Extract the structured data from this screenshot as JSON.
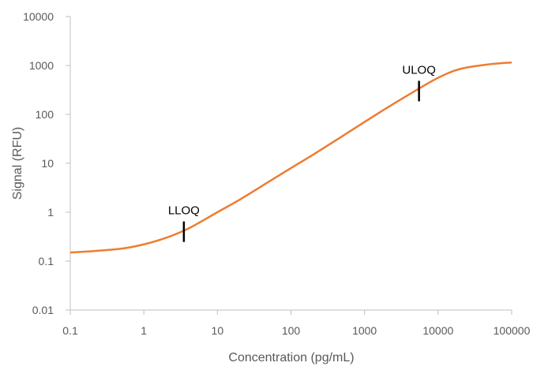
{
  "chart_data": {
    "type": "line",
    "title": "",
    "xlabel": "Concentration (pg/mL)",
    "ylabel": "Signal (RFU)",
    "x_scale": "log",
    "y_scale": "log",
    "xlim": [
      0.1,
      100000
    ],
    "ylim": [
      0.01,
      10000
    ],
    "x_ticks": [
      0.1,
      1,
      10,
      100,
      1000,
      10000,
      100000
    ],
    "x_tick_labels": [
      "0.1",
      "1",
      "10",
      "100",
      "1000",
      "10000",
      "100000"
    ],
    "y_ticks": [
      0.01,
      0.1,
      1,
      10,
      100,
      1000,
      10000
    ],
    "y_tick_labels": [
      "0.01",
      "0.1",
      "1",
      "10",
      "100",
      "1000",
      "10000"
    ],
    "grid": false,
    "legend": "none",
    "series": [
      {
        "color": "#ED7D31",
        "x": [
          0.1,
          0.2,
          0.5,
          1,
          2,
          3.5,
          5,
          10,
          20,
          50,
          100,
          200,
          500,
          1000,
          2000,
          5000,
          10000,
          20000,
          50000,
          100000
        ],
        "y": [
          0.15,
          0.16,
          0.18,
          0.22,
          0.3,
          0.42,
          0.55,
          1.0,
          1.8,
          4.2,
          8.0,
          15,
          36,
          70,
          135,
          310,
          560,
          850,
          1060,
          1150
        ]
      }
    ],
    "annotations": [
      {
        "label": "LLOQ",
        "x": 3.5,
        "y": 0.4
      },
      {
        "label": "ULOQ",
        "x": 5500,
        "y": 300
      }
    ],
    "colors": {
      "line": "#ED7D31",
      "axis": "#BFBFBF",
      "text": "#595959",
      "annotation": "#000000"
    }
  }
}
